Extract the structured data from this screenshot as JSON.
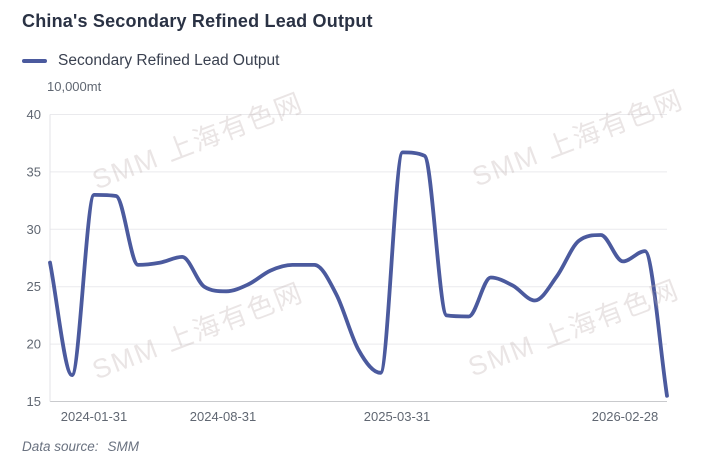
{
  "title": "China's Secondary Refined Lead Output",
  "legend": {
    "series_label": "Secondary Refined Lead Output"
  },
  "y_axis_unit": "10,000mt",
  "watermark_text": "SMM 上海有色网",
  "footer": {
    "source_label": "Data source:",
    "source_value": "SMM"
  },
  "colors": {
    "line": "#4b5a9e",
    "title_text": "#2a3244",
    "axis_text": "#606772",
    "gridline": "#eaeaed",
    "axis_line": "#c9cacd",
    "left_axis_line": "#e3e3e7",
    "watermark": "rgba(186,168,168,0.30)"
  },
  "chart_data": {
    "type": "line",
    "title": "China's Secondary Refined Lead Output",
    "unit": "10,000mt",
    "smooth": true,
    "grid": true,
    "legend_position": "top-left",
    "ylim": [
      15,
      40
    ],
    "y_ticks": [
      15,
      20,
      25,
      30,
      35,
      40
    ],
    "x_tick_labels": [
      "2024-01-31",
      "2024-08-31",
      "2025-03-31",
      "2026-02-28"
    ],
    "x": [
      "2023-11-30",
      "2023-12-31",
      "2024-01-31",
      "2024-02-29",
      "2024-03-31",
      "2024-04-30",
      "2024-05-31",
      "2024-06-30",
      "2024-07-31",
      "2024-08-31",
      "2024-09-30",
      "2024-10-31",
      "2024-11-30",
      "2024-12-31",
      "2025-01-31",
      "2025-02-28",
      "2025-03-31",
      "2025-04-30",
      "2025-05-31",
      "2025-06-30",
      "2025-07-31",
      "2025-08-31",
      "2025-09-30",
      "2025-10-31",
      "2025-11-30",
      "2025-12-31",
      "2026-01-31",
      "2026-02-28",
      "2026-03-31"
    ],
    "series": [
      {
        "name": "Secondary Refined Lead Output",
        "values": [
          27.1,
          17.3,
          33.0,
          32.9,
          26.9,
          27.1,
          27.6,
          25.0,
          24.6,
          25.2,
          26.4,
          26.9,
          26.9,
          24.3,
          19.5,
          17.5,
          36.7,
          36.4,
          22.5,
          22.4,
          25.8,
          25.1,
          23.8,
          25.9,
          29.0,
          29.5,
          27.2,
          28.1,
          15.5
        ]
      }
    ]
  }
}
